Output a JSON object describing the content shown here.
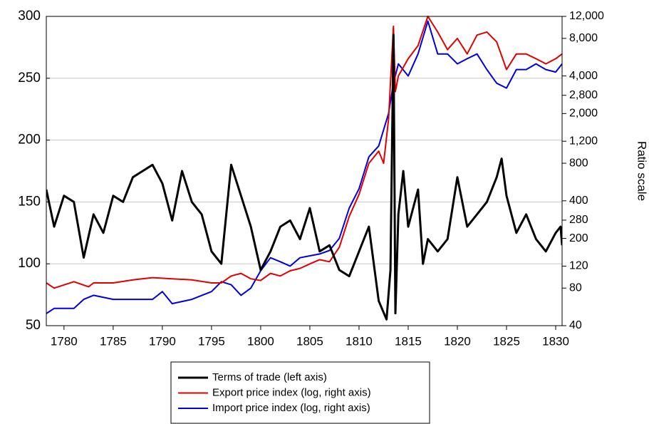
{
  "chart_data": {
    "type": "line",
    "y2_label": "Ratio scale",
    "xlim": [
      1778.2,
      1830.65
    ],
    "xticks": [
      1780,
      1785,
      1790,
      1795,
      1800,
      1805,
      1810,
      1815,
      1820,
      1825,
      1830
    ],
    "ylim": [
      50,
      300
    ],
    "yticks": [
      50,
      100,
      150,
      200,
      250,
      300
    ],
    "y2lim": [
      40,
      12000
    ],
    "y2_log": true,
    "y2ticks": [
      40,
      80,
      120,
      200,
      280,
      400,
      800,
      {
        "value": 1200,
        "label": "1,200"
      },
      {
        "value": 2000,
        "label": "2,000"
      },
      {
        "value": 2800,
        "label": "2,800"
      },
      {
        "value": 4000,
        "label": "4,000"
      },
      {
        "value": 8000,
        "label": "8,000"
      },
      {
        "value": 12000,
        "label": "12,000"
      }
    ],
    "grid": true,
    "legend": "bottom",
    "series": [
      {
        "name": "Terms of trade (left axis)",
        "color": "#000000",
        "line_width": 3,
        "x": [
          1778.2,
          1779,
          1780,
          1781,
          1782,
          1783,
          1784,
          1785,
          1786,
          1787,
          1788,
          1789,
          1790,
          1791,
          1792,
          1793,
          1794,
          1795,
          1796,
          1797,
          1798,
          1799,
          1800,
          1801,
          1802,
          1803,
          1804,
          1805,
          1806,
          1807,
          1808,
          1809,
          1810,
          1811,
          1812,
          1812.8,
          1813.2,
          1813.5,
          1813.7,
          1814,
          1814.5,
          1815,
          1816,
          1816.5,
          1817,
          1818,
          1819,
          1820,
          1821,
          1822,
          1823,
          1824,
          1824.5,
          1825,
          1826,
          1827,
          1828,
          1829,
          1830,
          1830.5,
          1830.65
        ],
        "values": [
          160,
          130,
          155,
          150,
          105,
          140,
          125,
          155,
          150,
          170,
          175,
          180,
          165,
          135,
          175,
          150,
          140,
          110,
          100,
          180,
          155,
          130,
          95,
          110,
          130,
          135,
          120,
          145,
          110,
          115,
          95,
          90,
          110,
          130,
          70,
          55,
          95,
          285,
          60,
          140,
          175,
          130,
          160,
          100,
          120,
          110,
          120,
          170,
          130,
          140,
          150,
          170,
          185,
          155,
          125,
          140,
          120,
          110,
          125,
          130,
          115
        ]
      },
      {
        "name": "Export price index (log, right axis)",
        "color": "#e00000",
        "line_width": 2,
        "axis": "y2",
        "x": [
          1778.2,
          1779,
          1781,
          1782.5,
          1783,
          1785,
          1787,
          1789,
          1791,
          1793,
          1795,
          1796,
          1797,
          1798,
          1799,
          1800,
          1801,
          1802,
          1803,
          1804,
          1805,
          1806,
          1807,
          1808,
          1809,
          1810,
          1811,
          1812,
          1812.5,
          1813,
          1813.5,
          1813.7,
          1814,
          1815,
          1816,
          1817,
          1818,
          1819,
          1820,
          1821,
          1822,
          1823,
          1824,
          1825,
          1826,
          1827,
          1828,
          1829,
          1830,
          1830.65
        ],
        "values": [
          88,
          80,
          90,
          82,
          88,
          88,
          93,
          97,
          95,
          93,
          88,
          88,
          100,
          105,
          95,
          92,
          105,
          100,
          110,
          115,
          125,
          135,
          130,
          170,
          300,
          450,
          800,
          1000,
          800,
          1800,
          10000,
          3000,
          4000,
          5500,
          7000,
          12000,
          9000,
          6500,
          8000,
          6000,
          8500,
          9000,
          7500,
          4500,
          6000,
          6000,
          5500,
          5000,
          5500,
          6000
        ]
      },
      {
        "name": "Import price index (log, right axis)",
        "color": "#0000dd",
        "line_width": 2,
        "axis": "y2",
        "x": [
          1778.2,
          1779,
          1781,
          1782,
          1783,
          1785,
          1787,
          1789,
          1790,
          1791,
          1793,
          1795,
          1796,
          1797,
          1798,
          1799,
          1800,
          1801,
          1802,
          1803,
          1804,
          1805,
          1806,
          1807,
          1808,
          1809,
          1810,
          1811,
          1812,
          1813,
          1813.5,
          1814,
          1815,
          1816,
          1817,
          1818,
          1819,
          1820,
          1821,
          1822,
          1823,
          1824,
          1825,
          1826,
          1827,
          1828,
          1829,
          1830,
          1830.65
        ],
        "values": [
          50,
          55,
          55,
          65,
          70,
          65,
          65,
          65,
          75,
          60,
          65,
          75,
          90,
          85,
          70,
          80,
          110,
          140,
          130,
          120,
          140,
          145,
          150,
          160,
          200,
          350,
          500,
          900,
          1100,
          2000,
          3500,
          5000,
          4000,
          6000,
          11000,
          6000,
          6000,
          5000,
          5500,
          6000,
          4500,
          3500,
          3200,
          4500,
          4500,
          5000,
          4500,
          4300,
          5000
        ]
      }
    ]
  }
}
